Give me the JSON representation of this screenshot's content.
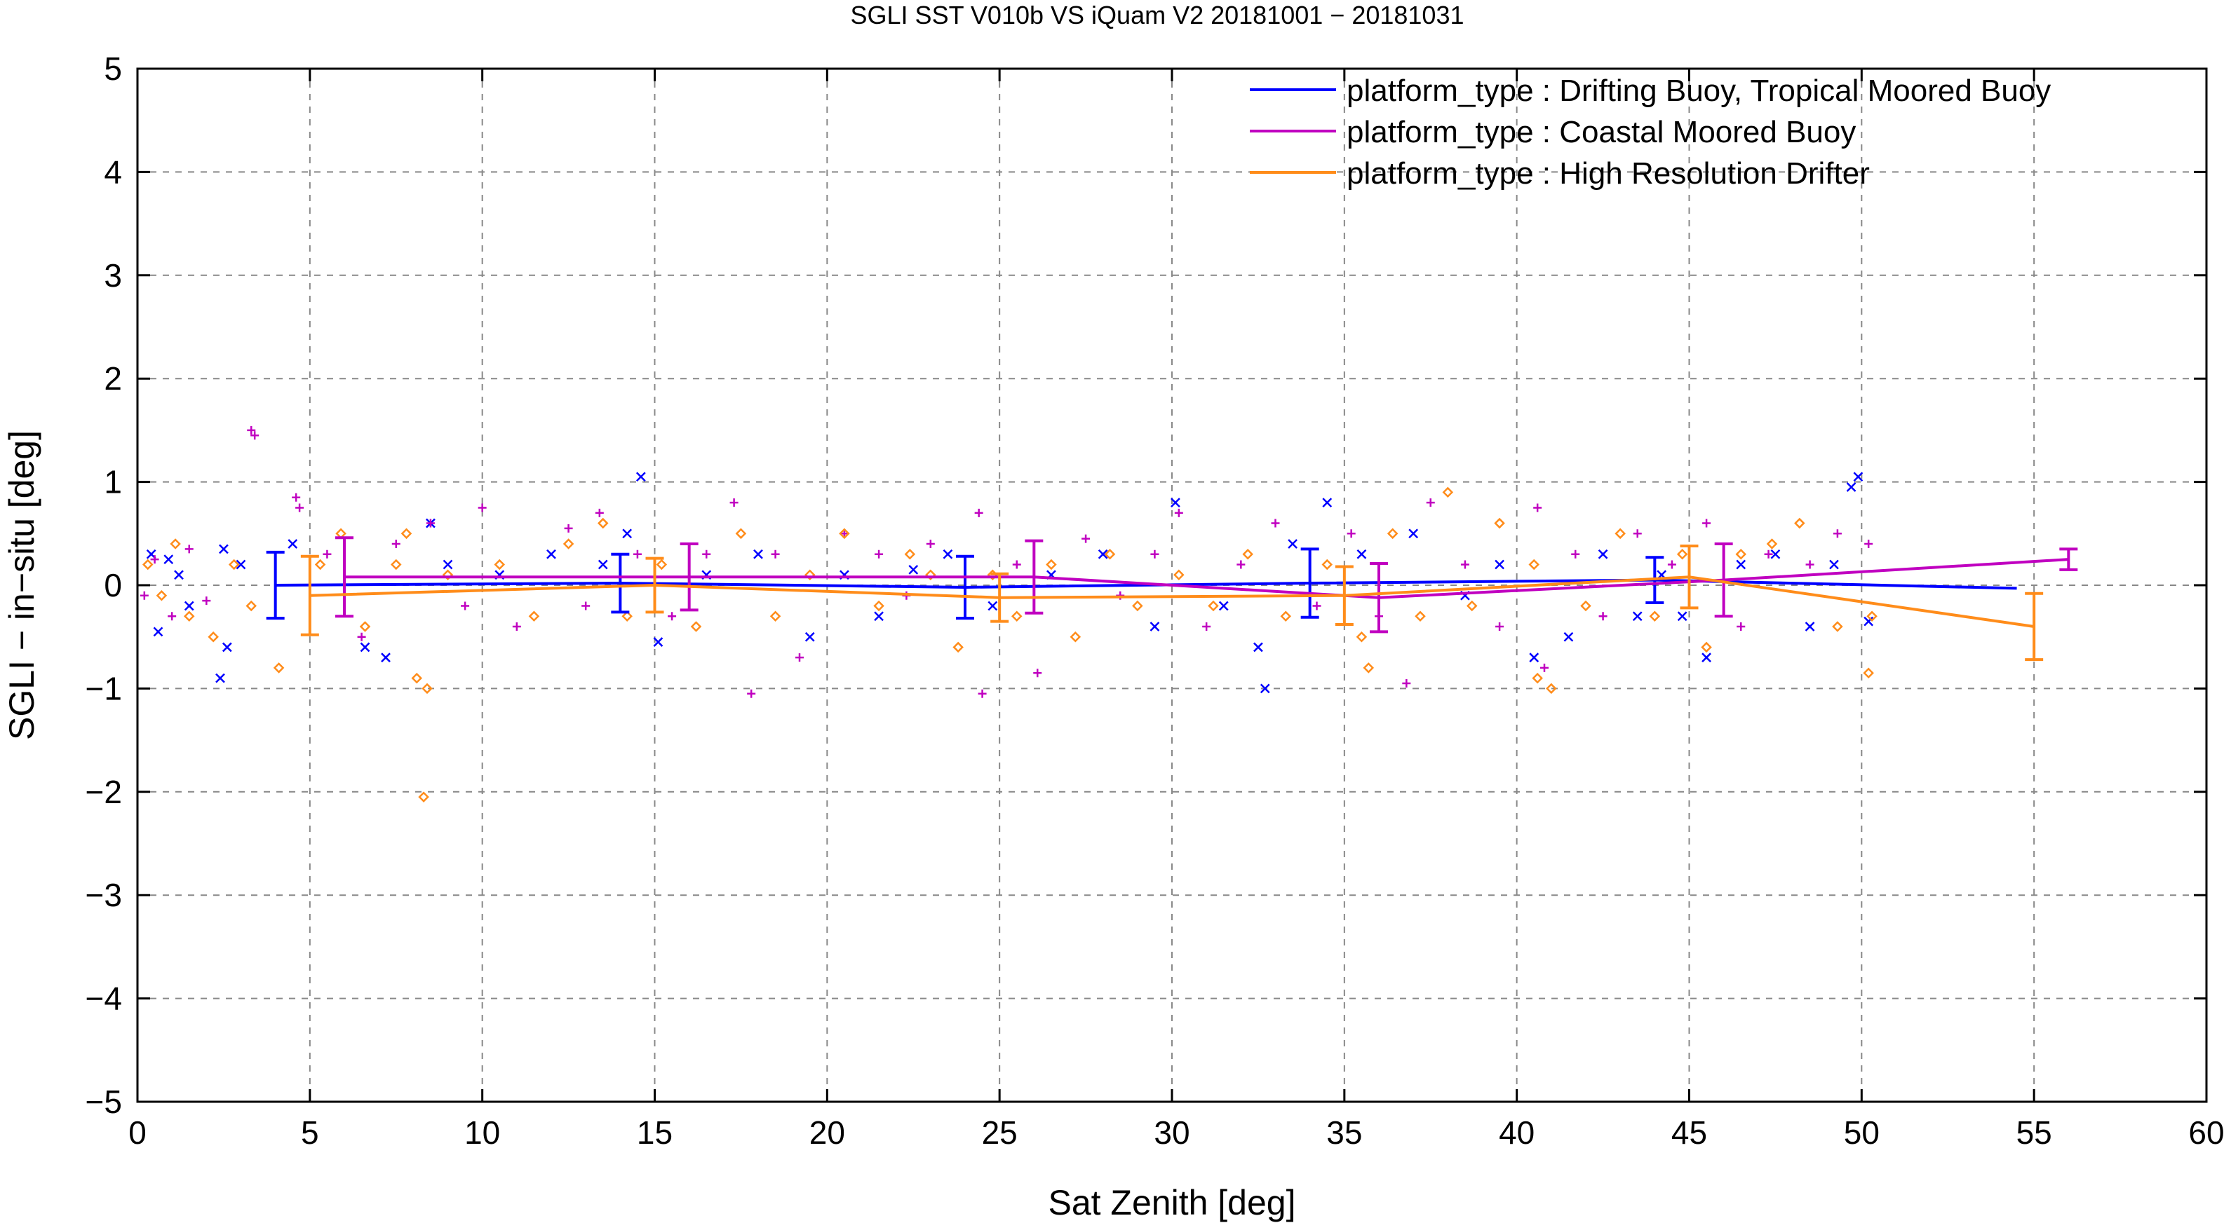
{
  "chart_data": {
    "type": "scatter",
    "title": "SGLI SST V010b VS iQuam V2 20181001 − 20181031",
    "xlabel": "Sat Zenith [deg]",
    "ylabel": "SGLI − in−situ [deg]",
    "xlim": [
      0,
      60
    ],
    "ylim": [
      -5,
      5
    ],
    "x_ticks": [
      0,
      5,
      10,
      15,
      20,
      25,
      30,
      35,
      40,
      45,
      50,
      55,
      60
    ],
    "y_ticks": [
      -5,
      -4,
      -3,
      -2,
      -1,
      0,
      1,
      2,
      3,
      4,
      5
    ],
    "x_tick_labels": [
      "0",
      "5",
      "10",
      "15",
      "20",
      "25",
      "30",
      "35",
      "40",
      "45",
      "50",
      "55",
      "60"
    ],
    "y_tick_labels": [
      "−5",
      "−4",
      "−3",
      "−2",
      "−1",
      "0",
      "1",
      "2",
      "3",
      "4",
      "5"
    ],
    "grid": true,
    "legend_position": "top-right",
    "series": [
      {
        "name": "platform_type : Drifting Buoy, Tropical Moored Buoy",
        "color": "#0000ff",
        "marker": "x",
        "mean_x": [
          4,
          14,
          24,
          34,
          44,
          54.5
        ],
        "mean_y": [
          0.0,
          0.02,
          -0.02,
          0.02,
          0.05,
          -0.03
        ],
        "err": [
          0.32,
          0.28,
          0.3,
          0.33,
          0.22,
          0.0
        ],
        "points": [
          [
            0.4,
            0.3
          ],
          [
            0.6,
            -0.45
          ],
          [
            0.9,
            0.25
          ],
          [
            1.2,
            0.1
          ],
          [
            1.5,
            -0.2
          ],
          [
            2.4,
            -0.9
          ],
          [
            2.6,
            -0.6
          ],
          [
            2.5,
            0.35
          ],
          [
            3.0,
            0.2
          ],
          [
            4.5,
            0.4
          ],
          [
            6.6,
            -0.6
          ],
          [
            7.2,
            -0.7
          ],
          [
            8.5,
            0.6
          ],
          [
            9.0,
            0.2
          ],
          [
            10.5,
            0.1
          ],
          [
            12.0,
            0.3
          ],
          [
            13.5,
            0.2
          ],
          [
            14.2,
            0.5
          ],
          [
            14.6,
            1.05
          ],
          [
            15.1,
            -0.55
          ],
          [
            16.5,
            0.1
          ],
          [
            18.0,
            0.3
          ],
          [
            19.5,
            -0.5
          ],
          [
            20.5,
            0.1
          ],
          [
            21.5,
            -0.3
          ],
          [
            22.5,
            0.15
          ],
          [
            23.5,
            0.3
          ],
          [
            24.8,
            -0.2
          ],
          [
            26.5,
            0.1
          ],
          [
            28.0,
            0.3
          ],
          [
            29.5,
            -0.4
          ],
          [
            30.1,
            0.8
          ],
          [
            31.5,
            -0.2
          ],
          [
            32.5,
            -0.6
          ],
          [
            32.7,
            -1.0
          ],
          [
            33.5,
            0.4
          ],
          [
            34.5,
            0.8
          ],
          [
            35.5,
            0.3
          ],
          [
            37.0,
            0.5
          ],
          [
            38.5,
            -0.1
          ],
          [
            39.5,
            0.2
          ],
          [
            40.5,
            -0.7
          ],
          [
            41.5,
            -0.5
          ],
          [
            42.5,
            0.3
          ],
          [
            43.5,
            -0.3
          ],
          [
            44.2,
            0.1
          ],
          [
            44.8,
            -0.3
          ],
          [
            45.5,
            -0.7
          ],
          [
            46.5,
            0.2
          ],
          [
            47.5,
            0.3
          ],
          [
            48.5,
            -0.4
          ],
          [
            49.2,
            0.2
          ],
          [
            49.7,
            0.95
          ],
          [
            49.9,
            1.05
          ],
          [
            50.2,
            -0.35
          ]
        ]
      },
      {
        "name": "platform_type : Coastal Moored Buoy",
        "color": "#c000c0",
        "marker": "+",
        "mean_x": [
          6,
          16,
          26,
          36,
          46,
          56
        ],
        "mean_y": [
          0.08,
          0.08,
          0.08,
          -0.12,
          0.05,
          0.25
        ],
        "err": [
          0.38,
          0.32,
          0.35,
          0.33,
          0.35,
          0.1
        ],
        "points": [
          [
            0.2,
            -0.1
          ],
          [
            0.5,
            0.25
          ],
          [
            1.0,
            -0.3
          ],
          [
            1.5,
            0.35
          ],
          [
            2.0,
            -0.15
          ],
          [
            3.3,
            1.5
          ],
          [
            3.4,
            1.45
          ],
          [
            4.6,
            0.85
          ],
          [
            4.7,
            0.75
          ],
          [
            5.5,
            0.3
          ],
          [
            6.5,
            -0.5
          ],
          [
            7.5,
            0.4
          ],
          [
            8.5,
            0.6
          ],
          [
            9.5,
            -0.2
          ],
          [
            10.0,
            0.75
          ],
          [
            11.0,
            -0.4
          ],
          [
            12.5,
            0.55
          ],
          [
            13.0,
            -0.2
          ],
          [
            13.4,
            0.7
          ],
          [
            14.5,
            0.3
          ],
          [
            15.5,
            -0.3
          ],
          [
            16.5,
            0.3
          ],
          [
            17.3,
            0.8
          ],
          [
            17.8,
            -1.05
          ],
          [
            18.5,
            0.3
          ],
          [
            19.2,
            -0.7
          ],
          [
            20.5,
            0.5
          ],
          [
            21.5,
            0.3
          ],
          [
            22.3,
            -0.1
          ],
          [
            23.0,
            0.4
          ],
          [
            24.4,
            0.7
          ],
          [
            24.5,
            -1.05
          ],
          [
            25.5,
            0.2
          ],
          [
            26.1,
            -0.85
          ],
          [
            27.5,
            0.45
          ],
          [
            28.5,
            -0.1
          ],
          [
            29.5,
            0.3
          ],
          [
            30.2,
            0.7
          ],
          [
            31.0,
            -0.4
          ],
          [
            32.0,
            0.2
          ],
          [
            33.0,
            0.6
          ],
          [
            34.2,
            -0.2
          ],
          [
            35.2,
            0.5
          ],
          [
            36.0,
            -0.3
          ],
          [
            36.8,
            -0.95
          ],
          [
            37.5,
            0.8
          ],
          [
            38.5,
            0.2
          ],
          [
            39.5,
            -0.4
          ],
          [
            40.6,
            0.75
          ],
          [
            40.8,
            -0.8
          ],
          [
            41.7,
            0.3
          ],
          [
            42.5,
            -0.3
          ],
          [
            43.5,
            0.5
          ],
          [
            44.5,
            0.2
          ],
          [
            45.5,
            0.6
          ],
          [
            46.5,
            -0.4
          ],
          [
            47.3,
            0.3
          ],
          [
            48.5,
            0.2
          ],
          [
            49.3,
            0.5
          ],
          [
            50.2,
            0.4
          ]
        ]
      },
      {
        "name": "platform_type : High Resolution Drifter",
        "color": "#ff8c1a",
        "marker": "diamond",
        "mean_x": [
          5,
          15,
          25,
          35,
          45,
          55
        ],
        "mean_y": [
          -0.1,
          0.0,
          -0.12,
          -0.1,
          0.08,
          -0.4
        ],
        "err": [
          0.38,
          0.26,
          0.23,
          0.28,
          0.3,
          0.32
        ],
        "points": [
          [
            0.3,
            0.2
          ],
          [
            0.7,
            -0.1
          ],
          [
            1.1,
            0.4
          ],
          [
            1.5,
            -0.3
          ],
          [
            2.2,
            -0.5
          ],
          [
            2.8,
            0.2
          ],
          [
            3.3,
            -0.2
          ],
          [
            4.1,
            -0.8
          ],
          [
            5.3,
            0.2
          ],
          [
            5.9,
            0.5
          ],
          [
            6.6,
            -0.4
          ],
          [
            7.5,
            0.2
          ],
          [
            7.8,
            0.5
          ],
          [
            8.1,
            -0.9
          ],
          [
            8.3,
            -2.05
          ],
          [
            8.4,
            -1.0
          ],
          [
            9.0,
            0.1
          ],
          [
            10.5,
            0.2
          ],
          [
            11.5,
            -0.3
          ],
          [
            12.5,
            0.4
          ],
          [
            13.5,
            0.6
          ],
          [
            14.2,
            -0.3
          ],
          [
            15.2,
            0.2
          ],
          [
            16.2,
            -0.4
          ],
          [
            17.5,
            0.5
          ],
          [
            18.5,
            -0.3
          ],
          [
            19.5,
            0.1
          ],
          [
            20.5,
            0.5
          ],
          [
            21.5,
            -0.2
          ],
          [
            22.4,
            0.3
          ],
          [
            23.0,
            0.1
          ],
          [
            23.8,
            -0.6
          ],
          [
            24.8,
            0.1
          ],
          [
            25.5,
            -0.3
          ],
          [
            26.5,
            0.2
          ],
          [
            27.2,
            -0.5
          ],
          [
            28.2,
            0.3
          ],
          [
            29.0,
            -0.2
          ],
          [
            30.2,
            0.1
          ],
          [
            31.2,
            -0.2
          ],
          [
            32.2,
            0.3
          ],
          [
            33.3,
            -0.3
          ],
          [
            34.5,
            0.2
          ],
          [
            35.5,
            -0.5
          ],
          [
            35.7,
            -0.8
          ],
          [
            36.4,
            0.5
          ],
          [
            37.2,
            -0.3
          ],
          [
            38.0,
            0.9
          ],
          [
            38.7,
            -0.2
          ],
          [
            39.5,
            0.6
          ],
          [
            40.5,
            0.2
          ],
          [
            40.6,
            -0.9
          ],
          [
            41.0,
            -1.0
          ],
          [
            42.0,
            -0.2
          ],
          [
            43.0,
            0.5
          ],
          [
            44.0,
            -0.3
          ],
          [
            44.8,
            0.3
          ],
          [
            45.5,
            -0.6
          ],
          [
            46.5,
            0.3
          ],
          [
            47.4,
            0.4
          ],
          [
            48.2,
            0.6
          ],
          [
            49.3,
            -0.4
          ],
          [
            50.2,
            -0.85
          ],
          [
            50.3,
            -0.3
          ]
        ]
      }
    ]
  }
}
